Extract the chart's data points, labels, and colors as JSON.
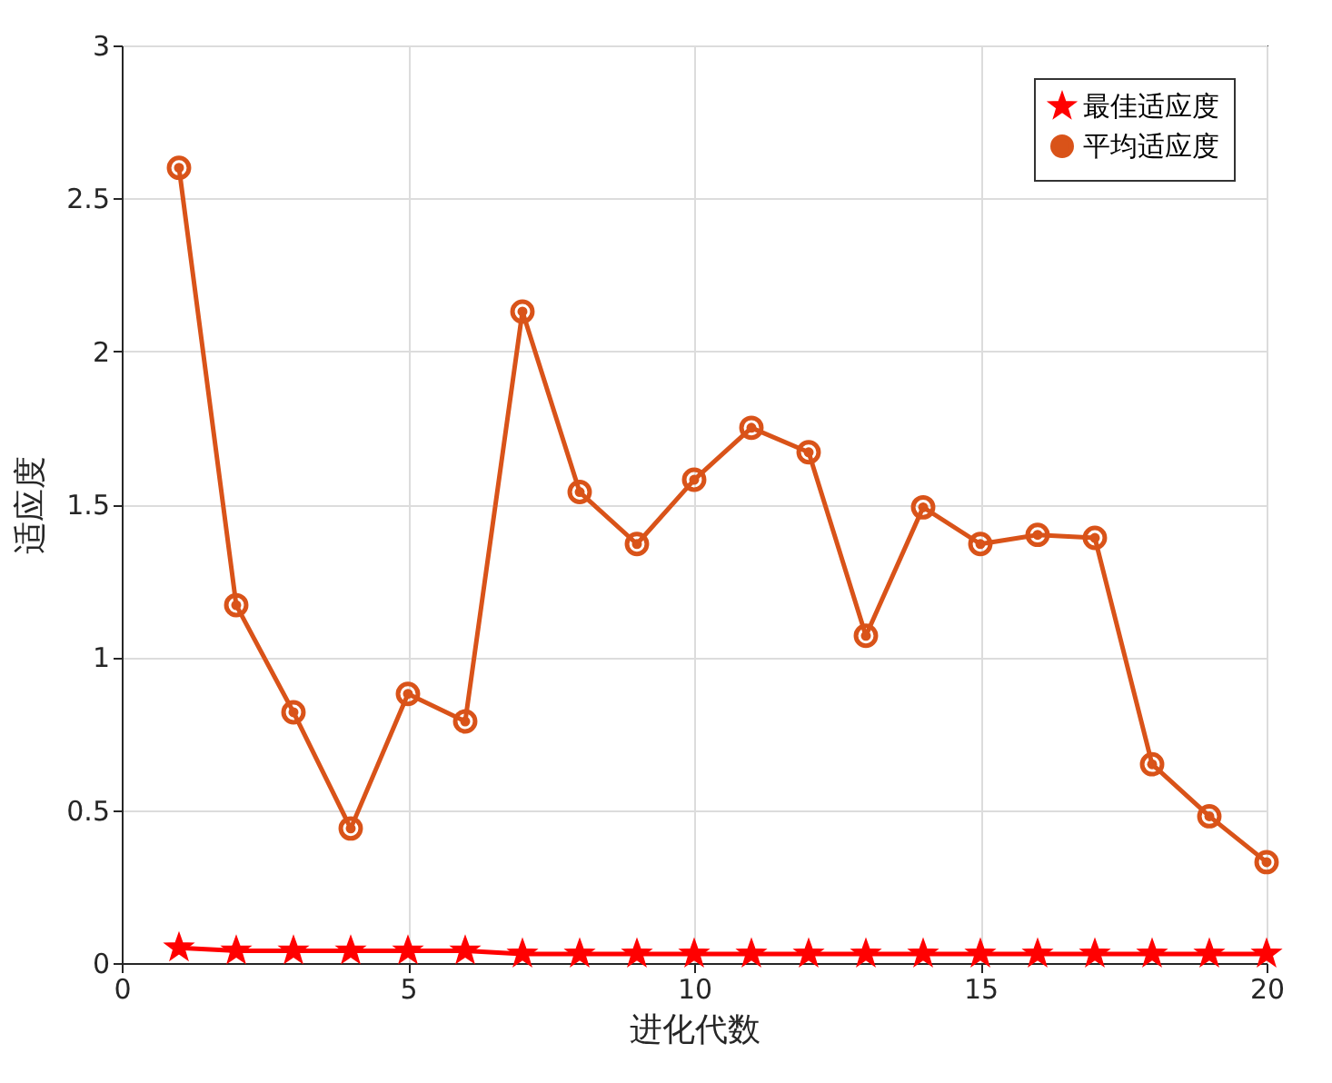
{
  "chart_data": {
    "type": "line",
    "xlabel": "进化代数",
    "ylabel": "适应度",
    "x": [
      1,
      2,
      3,
      4,
      5,
      6,
      7,
      8,
      9,
      10,
      11,
      12,
      13,
      14,
      15,
      16,
      17,
      18,
      19,
      20
    ],
    "series": [
      {
        "name": "最佳适应度",
        "color": "#ff0000",
        "marker": "star",
        "values": [
          0.05,
          0.04,
          0.04,
          0.04,
          0.04,
          0.04,
          0.03,
          0.03,
          0.03,
          0.03,
          0.03,
          0.03,
          0.03,
          0.03,
          0.03,
          0.03,
          0.03,
          0.03,
          0.03,
          0.03
        ]
      },
      {
        "name": "平均适应度",
        "color": "#d95319",
        "marker": "circle",
        "values": [
          2.6,
          1.17,
          0.82,
          0.44,
          0.88,
          0.79,
          2.13,
          1.54,
          1.37,
          1.58,
          1.75,
          1.67,
          1.07,
          1.49,
          1.37,
          1.4,
          1.39,
          0.65,
          0.48,
          0.33
        ]
      }
    ],
    "xlim": [
      0,
      20
    ],
    "xticks": [
      0,
      5,
      10,
      15,
      20
    ],
    "ylim": [
      0,
      3
    ],
    "yticks": [
      0,
      0.5,
      1,
      1.5,
      2,
      2.5,
      3
    ],
    "grid": true,
    "legend": "top right",
    "line_style": "solid"
  }
}
